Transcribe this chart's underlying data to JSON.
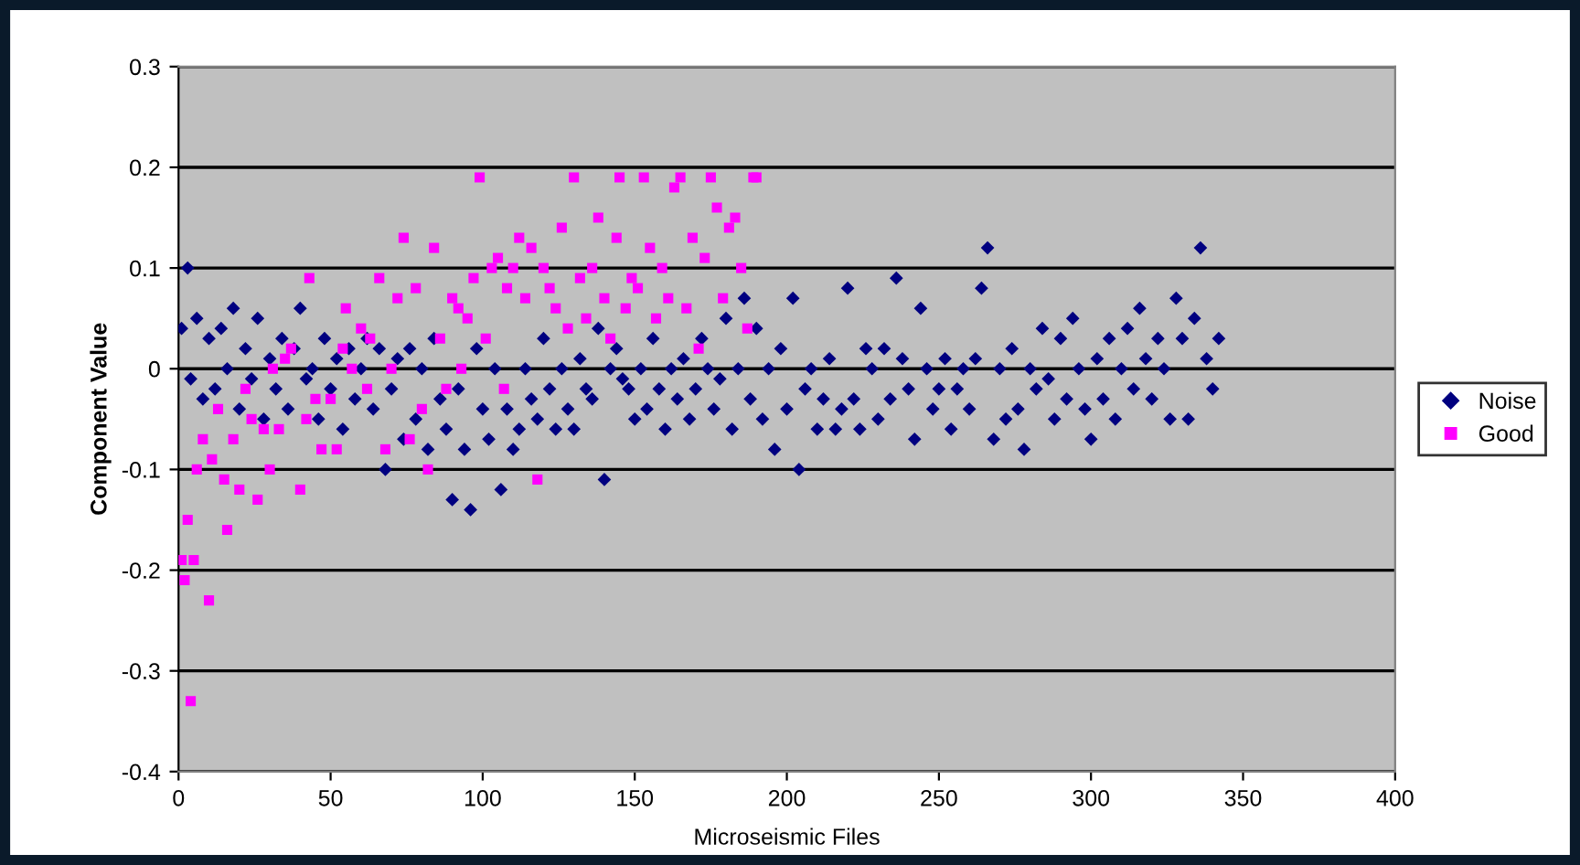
{
  "chart_data": {
    "type": "scatter",
    "xlabel": "Microseismic Files",
    "ylabel": "Component Value",
    "xlim": [
      0,
      400
    ],
    "xticks": [
      0,
      50,
      100,
      150,
      200,
      250,
      300,
      350,
      400
    ],
    "ylim": [
      -0.4,
      0.3
    ],
    "yticks": [
      -0.4,
      -0.3,
      -0.2,
      -0.1,
      0,
      0.1,
      0.2,
      0.3
    ],
    "grid": "y",
    "legend": "right",
    "series": [
      {
        "name": "Noise",
        "color": "#000080",
        "marker": "diamond",
        "x": [
          1,
          3,
          4,
          6,
          8,
          10,
          12,
          14,
          16,
          18,
          20,
          22,
          24,
          26,
          28,
          30,
          32,
          34,
          36,
          38,
          40,
          42,
          44,
          46,
          48,
          50,
          52,
          54,
          56,
          58,
          60,
          62,
          64,
          66,
          68,
          70,
          72,
          74,
          76,
          78,
          80,
          82,
          84,
          86,
          88,
          90,
          92,
          94,
          96,
          98,
          100,
          102,
          104,
          106,
          108,
          110,
          112,
          114,
          116,
          118,
          120,
          122,
          124,
          126,
          128,
          130,
          132,
          134,
          136,
          138,
          140,
          142,
          144,
          146,
          148,
          150,
          152,
          154,
          156,
          158,
          160,
          162,
          164,
          166,
          168,
          170,
          172,
          174,
          176,
          178,
          180,
          182,
          184,
          186,
          188,
          190,
          192,
          194,
          196,
          198,
          200,
          202,
          204,
          206,
          208,
          210,
          212,
          214,
          216,
          218,
          220,
          222,
          224,
          226,
          228,
          230,
          232,
          234,
          236,
          238,
          240,
          242,
          244,
          246,
          248,
          250,
          252,
          254,
          256,
          258,
          260,
          262,
          264,
          266,
          268,
          270,
          272,
          274,
          276,
          278,
          280,
          282,
          284,
          286,
          288,
          290,
          292,
          294,
          296,
          298,
          300,
          302,
          304,
          306,
          308,
          310,
          312,
          314,
          316,
          318,
          320,
          322,
          324,
          326,
          328,
          330,
          332,
          334,
          336,
          338,
          340,
          342
        ],
        "values": [
          0.04,
          0.1,
          -0.01,
          0.05,
          -0.03,
          0.03,
          -0.02,
          0.04,
          0.0,
          0.06,
          -0.04,
          0.02,
          -0.01,
          0.05,
          -0.05,
          0.01,
          -0.02,
          0.03,
          -0.04,
          0.02,
          0.06,
          -0.01,
          0.0,
          -0.05,
          0.03,
          -0.02,
          0.01,
          -0.06,
          0.02,
          -0.03,
          0.0,
          0.03,
          -0.04,
          0.02,
          -0.1,
          -0.02,
          0.01,
          -0.07,
          0.02,
          -0.05,
          0.0,
          -0.08,
          0.03,
          -0.03,
          -0.06,
          -0.13,
          -0.02,
          -0.08,
          -0.14,
          0.02,
          -0.04,
          -0.07,
          0.0,
          -0.12,
          -0.04,
          -0.08,
          -0.06,
          0.0,
          -0.03,
          -0.05,
          0.03,
          -0.02,
          -0.06,
          0.0,
          -0.04,
          -0.06,
          0.01,
          -0.02,
          -0.03,
          0.04,
          -0.11,
          0.0,
          0.02,
          -0.01,
          -0.02,
          -0.05,
          0.0,
          -0.04,
          0.03,
          -0.02,
          -0.06,
          0.0,
          -0.03,
          0.01,
          -0.05,
          -0.02,
          0.03,
          0.0,
          -0.04,
          -0.01,
          0.05,
          -0.06,
          0.0,
          0.07,
          -0.03,
          0.04,
          -0.05,
          0.0,
          -0.08,
          0.02,
          -0.04,
          0.07,
          -0.1,
          -0.02,
          0.0,
          -0.06,
          -0.03,
          0.01,
          -0.06,
          -0.04,
          0.08,
          -0.03,
          -0.06,
          0.02,
          0.0,
          -0.05,
          0.02,
          -0.03,
          0.09,
          0.01,
          -0.02,
          -0.07,
          0.06,
          0.0,
          -0.04,
          -0.02,
          0.01,
          -0.06,
          -0.02,
          0.0,
          -0.04,
          0.01,
          0.08,
          0.12,
          -0.07,
          0.0,
          -0.05,
          0.02,
          -0.04,
          -0.08,
          0.0,
          -0.02,
          0.04,
          -0.01,
          -0.05,
          0.03,
          -0.03,
          0.05,
          0.0,
          -0.04,
          -0.07,
          0.01,
          -0.03,
          0.03,
          -0.05,
          0.0,
          0.04,
          -0.02,
          0.06,
          0.01,
          -0.03,
          0.03,
          0.0,
          -0.05,
          0.07,
          0.03,
          -0.05,
          0.05,
          0.12,
          0.01,
          -0.02,
          0.03
        ]
      },
      {
        "name": "Good",
        "color": "#ff00ff",
        "marker": "square",
        "x": [
          1,
          2,
          3,
          4,
          5,
          6,
          8,
          10,
          11,
          13,
          15,
          16,
          18,
          20,
          22,
          24,
          26,
          28,
          30,
          31,
          33,
          35,
          37,
          40,
          42,
          43,
          45,
          47,
          50,
          52,
          54,
          55,
          57,
          60,
          62,
          63,
          66,
          68,
          70,
          72,
          74,
          76,
          78,
          80,
          82,
          84,
          86,
          88,
          90,
          92,
          93,
          95,
          97,
          99,
          101,
          103,
          105,
          107,
          108,
          110,
          112,
          114,
          116,
          118,
          120,
          122,
          124,
          126,
          128,
          130,
          132,
          134,
          136,
          138,
          140,
          142,
          144,
          145,
          147,
          149,
          151,
          153,
          155,
          157,
          159,
          161,
          163,
          165,
          167,
          169,
          171,
          173,
          175,
          177,
          179,
          181,
          183,
          185,
          187,
          189,
          190
        ],
        "values": [
          -0.19,
          -0.21,
          -0.15,
          -0.33,
          -0.19,
          -0.1,
          -0.07,
          -0.23,
          -0.09,
          -0.04,
          -0.11,
          -0.16,
          -0.07,
          -0.12,
          -0.02,
          -0.05,
          -0.13,
          -0.06,
          -0.1,
          0.0,
          -0.06,
          0.01,
          0.02,
          -0.12,
          -0.05,
          0.09,
          -0.03,
          -0.08,
          -0.03,
          -0.08,
          0.02,
          0.06,
          0.0,
          0.04,
          -0.02,
          0.03,
          0.09,
          -0.08,
          0.0,
          0.07,
          0.13,
          -0.07,
          0.08,
          -0.04,
          -0.1,
          0.12,
          0.03,
          -0.02,
          0.07,
          0.06,
          0.0,
          0.05,
          0.09,
          0.19,
          0.03,
          0.1,
          0.11,
          -0.02,
          0.08,
          0.1,
          0.13,
          0.07,
          0.12,
          -0.11,
          0.1,
          0.08,
          0.06,
          0.14,
          0.04,
          0.19,
          0.09,
          0.05,
          0.1,
          0.15,
          0.07,
          0.03,
          0.13,
          0.19,
          0.06,
          0.09,
          0.08,
          0.19,
          0.12,
          0.05,
          0.1,
          0.07,
          0.18,
          0.19,
          0.06,
          0.13,
          0.02,
          0.11,
          0.19,
          0.16,
          0.07,
          0.14,
          0.15,
          0.1,
          0.04,
          0.19,
          0.19
        ]
      }
    ]
  }
}
